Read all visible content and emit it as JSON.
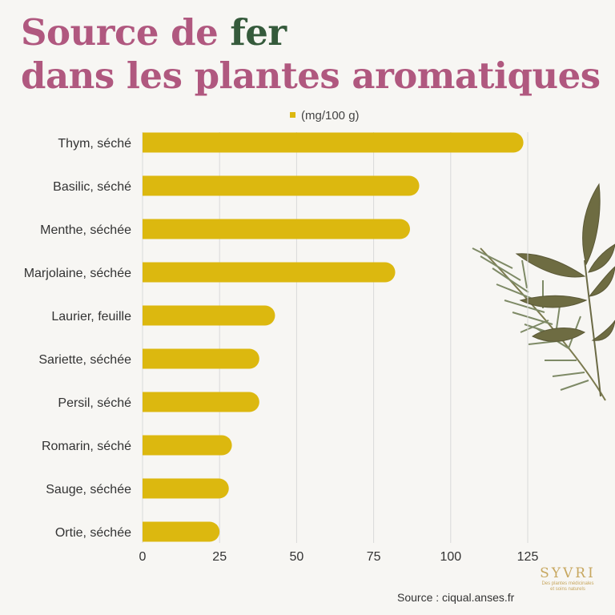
{
  "title": {
    "line1_pre": "Source de ",
    "line1_accent": "fer",
    "line2": "dans les plantes aromatiques"
  },
  "colors": {
    "title": "#b0587f",
    "accent": "#355a3b",
    "bar": "#dcb80f",
    "grid": "#d9d9d9",
    "background": "#f7f6f3"
  },
  "source": "Source : ciqual.anses.fr",
  "logo": {
    "brand": "SYVRI",
    "tagline_1": "Des plantes médicinales",
    "tagline_2": "et soins naturels"
  },
  "chart_data": {
    "type": "bar",
    "orientation": "horizontal",
    "categories": [
      "Thym, séché",
      "Basilic, séché",
      "Menthe, séchée",
      "Marjolaine, séchée",
      "Laurier, feuille",
      "Sariette, séchée",
      "Persil, séché",
      "Romarin, séché",
      "Sauge, séchée",
      "Ortie, séchée"
    ],
    "series": [
      {
        "name": "(mg/100 g)",
        "values": [
          123.6,
          89.8,
          86.8,
          82,
          43,
          37.9,
          37.9,
          29,
          28,
          25
        ]
      }
    ],
    "xlim": [
      0,
      125
    ],
    "xticks": [
      0,
      25,
      50,
      75,
      100,
      125
    ],
    "grid": true,
    "legend_position": "top"
  }
}
